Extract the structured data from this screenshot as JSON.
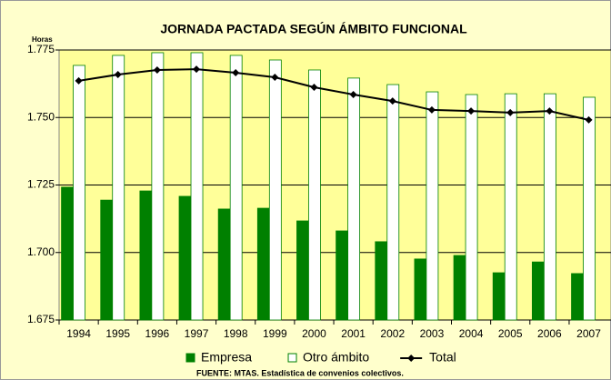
{
  "chart_data": {
    "type": "bar_line",
    "title": "JORNADA PACTADA SEGÚN ÁMBITO FUNCIONAL",
    "y_label": "Horas",
    "source": "FUENTE: MTAS. Estadística de convenios colectivos.",
    "categories": [
      "1994",
      "1995",
      "1996",
      "1997",
      "1998",
      "1999",
      "2000",
      "2001",
      "2002",
      "2003",
      "2004",
      "2005",
      "2006",
      "2007"
    ],
    "series": [
      {
        "name": "Empresa",
        "color": "#008000",
        "kind": "bar",
        "values": [
          1724.2,
          1719.4,
          1722.8,
          1720.8,
          1716.1,
          1716.4,
          1711.7,
          1708,
          1704,
          1697.6,
          1698.9,
          1692.5,
          1696.5,
          1692.2
        ]
      },
      {
        "name": "Otro ámbito",
        "color": "#ffffff",
        "kind": "bar",
        "values": [
          1769.3,
          1773,
          1774,
          1774,
          1773,
          1771.3,
          1767.6,
          1764.6,
          1762.2,
          1759.5,
          1758.5,
          1758.8,
          1758.8,
          1757.5
        ]
      },
      {
        "name": "Total",
        "color": "#000000",
        "kind": "line",
        "values": [
          1763.6,
          1765.9,
          1767.6,
          1767.9,
          1766.6,
          1764.9,
          1761.2,
          1758.5,
          1756.1,
          1752.8,
          1752.4,
          1751.8,
          1752.4,
          1749.1
        ]
      }
    ],
    "ylim": [
      1675,
      1775
    ],
    "yticks": [
      {
        "value": 1675,
        "label": "1.675"
      },
      {
        "value": 1700,
        "label": "1.700"
      },
      {
        "value": 1725,
        "label": "1.725"
      },
      {
        "value": 1750,
        "label": "1.750"
      },
      {
        "value": 1775,
        "label": "1.775"
      }
    ],
    "grid": true
  }
}
